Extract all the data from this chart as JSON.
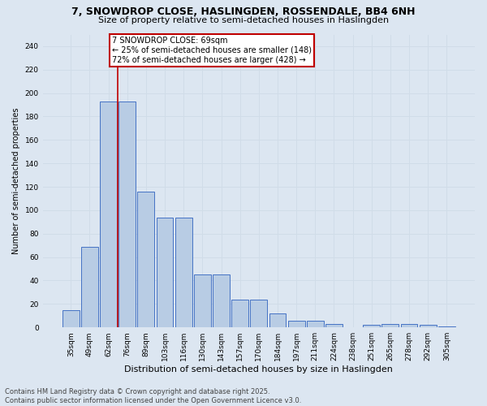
{
  "title_line1": "7, SNOWDROP CLOSE, HASLINGDEN, ROSSENDALE, BB4 6NH",
  "title_line2": "Size of property relative to semi-detached houses in Haslingden",
  "xlabel": "Distribution of semi-detached houses by size in Haslingden",
  "ylabel": "Number of semi-detached properties",
  "categories": [
    "35sqm",
    "49sqm",
    "62sqm",
    "76sqm",
    "89sqm",
    "103sqm",
    "116sqm",
    "130sqm",
    "143sqm",
    "157sqm",
    "170sqm",
    "184sqm",
    "197sqm",
    "211sqm",
    "224sqm",
    "238sqm",
    "251sqm",
    "265sqm",
    "278sqm",
    "292sqm",
    "305sqm"
  ],
  "values": [
    15,
    69,
    193,
    193,
    116,
    94,
    94,
    45,
    45,
    24,
    24,
    12,
    6,
    6,
    3,
    0,
    2,
    3,
    3,
    2,
    1
  ],
  "bar_color": "#b8cce4",
  "bar_edge_color": "#4472c4",
  "grid_color": "#d0dce8",
  "background_color": "#dce6f1",
  "vline_x_index": 2,
  "vline_color": "#c00000",
  "annotation_text": "7 SNOWDROP CLOSE: 69sqm\n← 25% of semi-detached houses are smaller (148)\n72% of semi-detached houses are larger (428) →",
  "annotation_box_color": "#ffffff",
  "annotation_box_edge": "#c00000",
  "footnote": "Contains HM Land Registry data © Crown copyright and database right 2025.\nContains public sector information licensed under the Open Government Licence v3.0.",
  "ylim": [
    0,
    250
  ],
  "yticks": [
    0,
    20,
    40,
    60,
    80,
    100,
    120,
    140,
    160,
    180,
    200,
    220,
    240
  ],
  "title1_fontsize": 9,
  "title2_fontsize": 8,
  "xlabel_fontsize": 8,
  "ylabel_fontsize": 7,
  "tick_fontsize": 6.5,
  "annotation_fontsize": 7,
  "footnote_fontsize": 6
}
